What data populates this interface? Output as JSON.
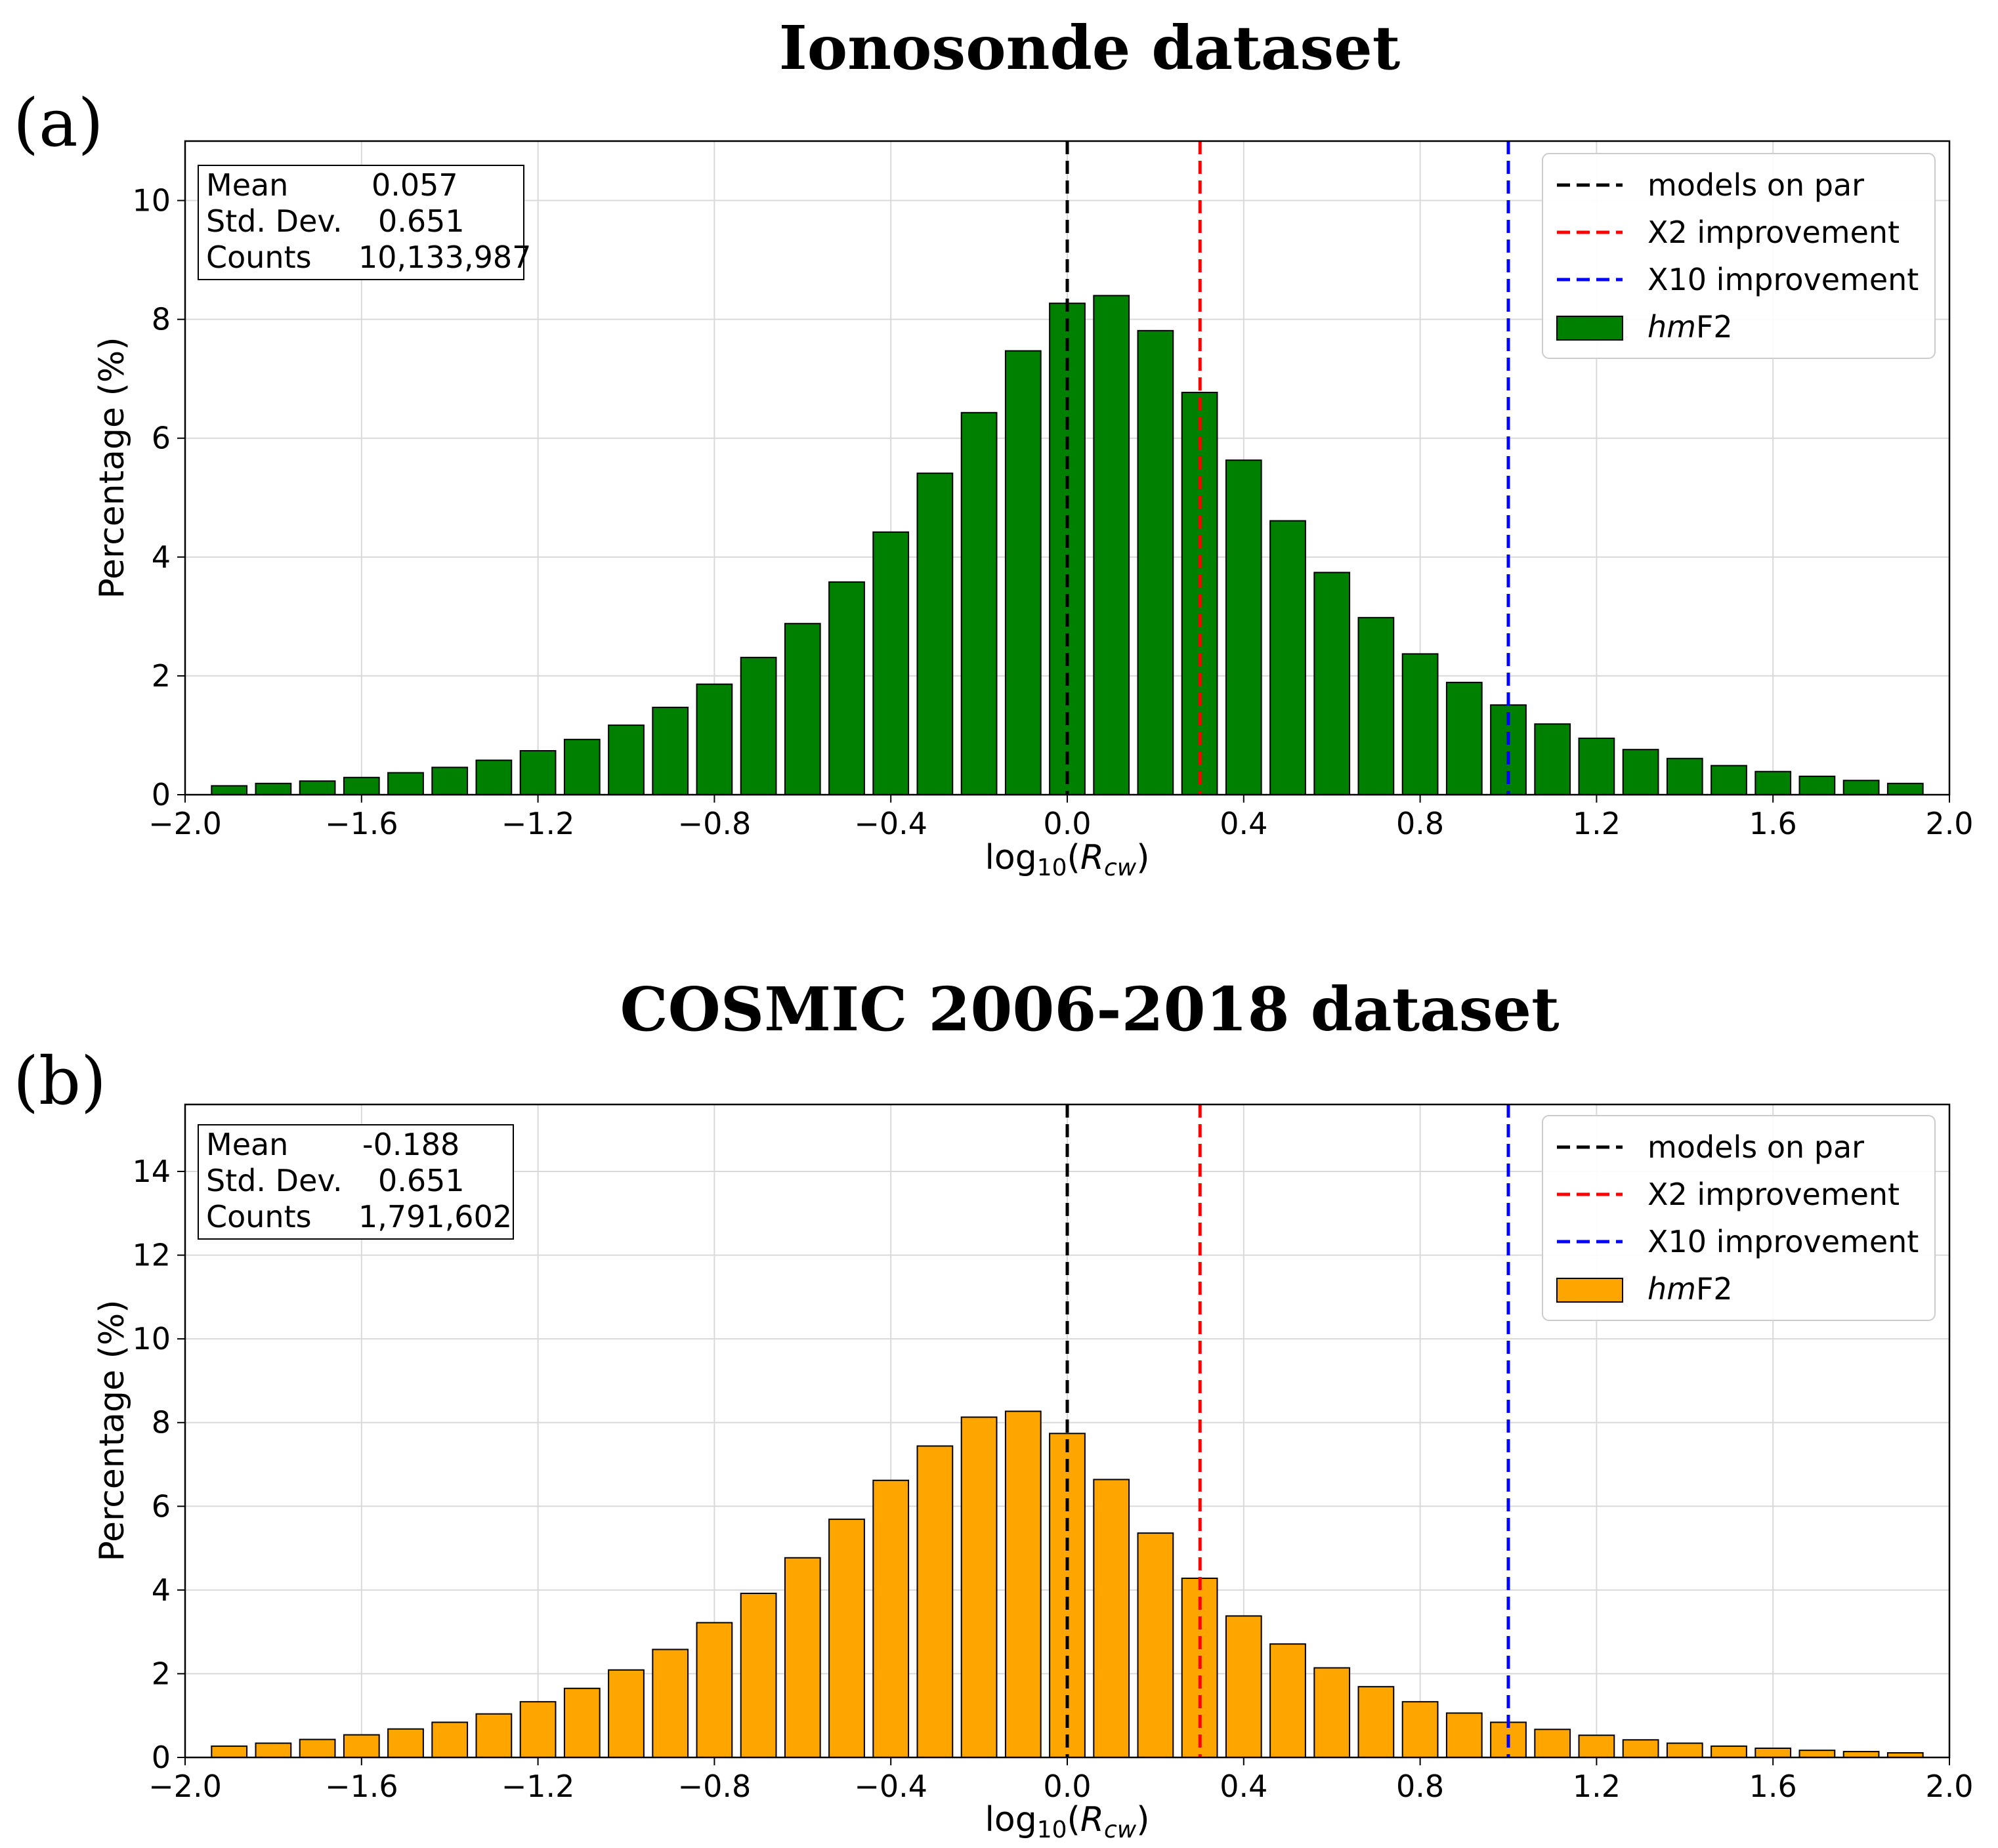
{
  "chart_data": [
    {
      "type": "bar",
      "panel_label": "(a)",
      "title": "Ionosonde dataset",
      "xlabel": {
        "main": "log",
        "sub": "10",
        "open": "(",
        "var": "R",
        "var_sub": "cw",
        "close": ")"
      },
      "ylabel": "Percentage (%)",
      "xlim": [
        -2.0,
        2.0
      ],
      "ylim": [
        0,
        11
      ],
      "xticks": [
        "−2.0",
        "−1.6",
        "−1.2",
        "−0.8",
        "−0.4",
        "0.0",
        "0.4",
        "0.8",
        "1.2",
        "1.6",
        "2.0"
      ],
      "yticks": [
        "0",
        "2",
        "4",
        "6",
        "8",
        "10"
      ],
      "bar_color": "#008000",
      "bin_centers": [
        -1.9,
        -1.8,
        -1.7,
        -1.6,
        -1.5,
        -1.4,
        -1.3,
        -1.2,
        -1.1,
        -1.0,
        -0.9,
        -0.8,
        -0.7,
        -0.6,
        -0.5,
        -0.4,
        -0.3,
        -0.2,
        -0.1,
        0.0,
        0.1,
        0.2,
        0.3,
        0.4,
        0.5,
        0.6,
        0.7,
        0.8,
        0.9,
        1.0,
        1.1,
        1.2,
        1.3,
        1.4,
        1.5,
        1.6,
        1.7,
        1.8,
        1.9
      ],
      "values": [
        0.15,
        0.19,
        0.23,
        0.29,
        0.37,
        0.46,
        0.58,
        0.74,
        0.93,
        1.17,
        1.47,
        1.86,
        2.31,
        2.88,
        3.58,
        4.42,
        5.41,
        6.43,
        7.47,
        8.27,
        8.4,
        7.81,
        6.77,
        5.63,
        4.61,
        3.74,
        2.98,
        2.37,
        1.89,
        1.51,
        1.19,
        0.95,
        0.76,
        0.61,
        0.49,
        0.39,
        0.31,
        0.24,
        0.19
      ],
      "stats": {
        "mean_label": "Mean",
        "mean_value": "0.057",
        "std_label": "Std. Dev.",
        "std_value": "0.651",
        "counts_label": "Counts",
        "counts_value": "10,133,987"
      },
      "vlines": [
        {
          "x": 0.0,
          "color": "#000000",
          "label": "models on par"
        },
        {
          "x": 0.301,
          "color": "#ff0000",
          "label": "X2 improvement"
        },
        {
          "x": 1.0,
          "color": "#0000ff",
          "label": "X10 improvement"
        }
      ],
      "legend_bar": {
        "italic": "hm",
        "rest": "F2"
      },
      "legend_placement": "top-right",
      "grid": true
    },
    {
      "type": "bar",
      "panel_label": "(b)",
      "title": "COSMIC 2006-2018 dataset",
      "xlabel": {
        "main": "log",
        "sub": "10",
        "open": "(",
        "var": "R",
        "var_sub": "cw",
        "close": ")"
      },
      "ylabel": "Percentage (%)",
      "xlim": [
        -2.0,
        2.0
      ],
      "ylim": [
        0,
        15.6
      ],
      "xticks": [
        "−2.0",
        "−1.6",
        "−1.2",
        "−0.8",
        "−0.4",
        "0.0",
        "0.4",
        "0.8",
        "1.2",
        "1.6",
        "2.0"
      ],
      "yticks": [
        "0",
        "2",
        "4",
        "6",
        "8",
        "10",
        "12",
        "14"
      ],
      "bar_color": "#ffa500",
      "bin_centers": [
        -1.9,
        -1.8,
        -1.7,
        -1.6,
        -1.5,
        -1.4,
        -1.3,
        -1.2,
        -1.1,
        -1.0,
        -0.9,
        -0.8,
        -0.7,
        -0.6,
        -0.5,
        -0.4,
        -0.3,
        -0.2,
        -0.1,
        0.0,
        0.1,
        0.2,
        0.3,
        0.4,
        0.5,
        0.6,
        0.7,
        0.8,
        0.9,
        1.0,
        1.1,
        1.2,
        1.3,
        1.4,
        1.5,
        1.6,
        1.7,
        1.8,
        1.9
      ],
      "values": [
        0.27,
        0.34,
        0.43,
        0.54,
        0.68,
        0.84,
        1.04,
        1.33,
        1.65,
        2.09,
        2.58,
        3.22,
        3.92,
        4.77,
        5.69,
        6.62,
        7.44,
        8.13,
        8.27,
        7.74,
        6.64,
        5.36,
        4.28,
        3.38,
        2.71,
        2.14,
        1.69,
        1.33,
        1.06,
        0.84,
        0.67,
        0.53,
        0.42,
        0.34,
        0.27,
        0.22,
        0.17,
        0.14,
        0.11
      ],
      "stats": {
        "mean_label": "Mean",
        "mean_value": "-0.188",
        "std_label": "Std. Dev.",
        "std_value": "0.651",
        "counts_label": "Counts",
        "counts_value": "1,791,602"
      },
      "vlines": [
        {
          "x": 0.0,
          "color": "#000000",
          "label": "models on par"
        },
        {
          "x": 0.301,
          "color": "#ff0000",
          "label": "X2 improvement"
        },
        {
          "x": 1.0,
          "color": "#0000ff",
          "label": "X10 improvement"
        }
      ],
      "legend_bar": {
        "italic": "hm",
        "rest": "F2"
      },
      "legend_placement": "top-right",
      "grid": true
    }
  ]
}
